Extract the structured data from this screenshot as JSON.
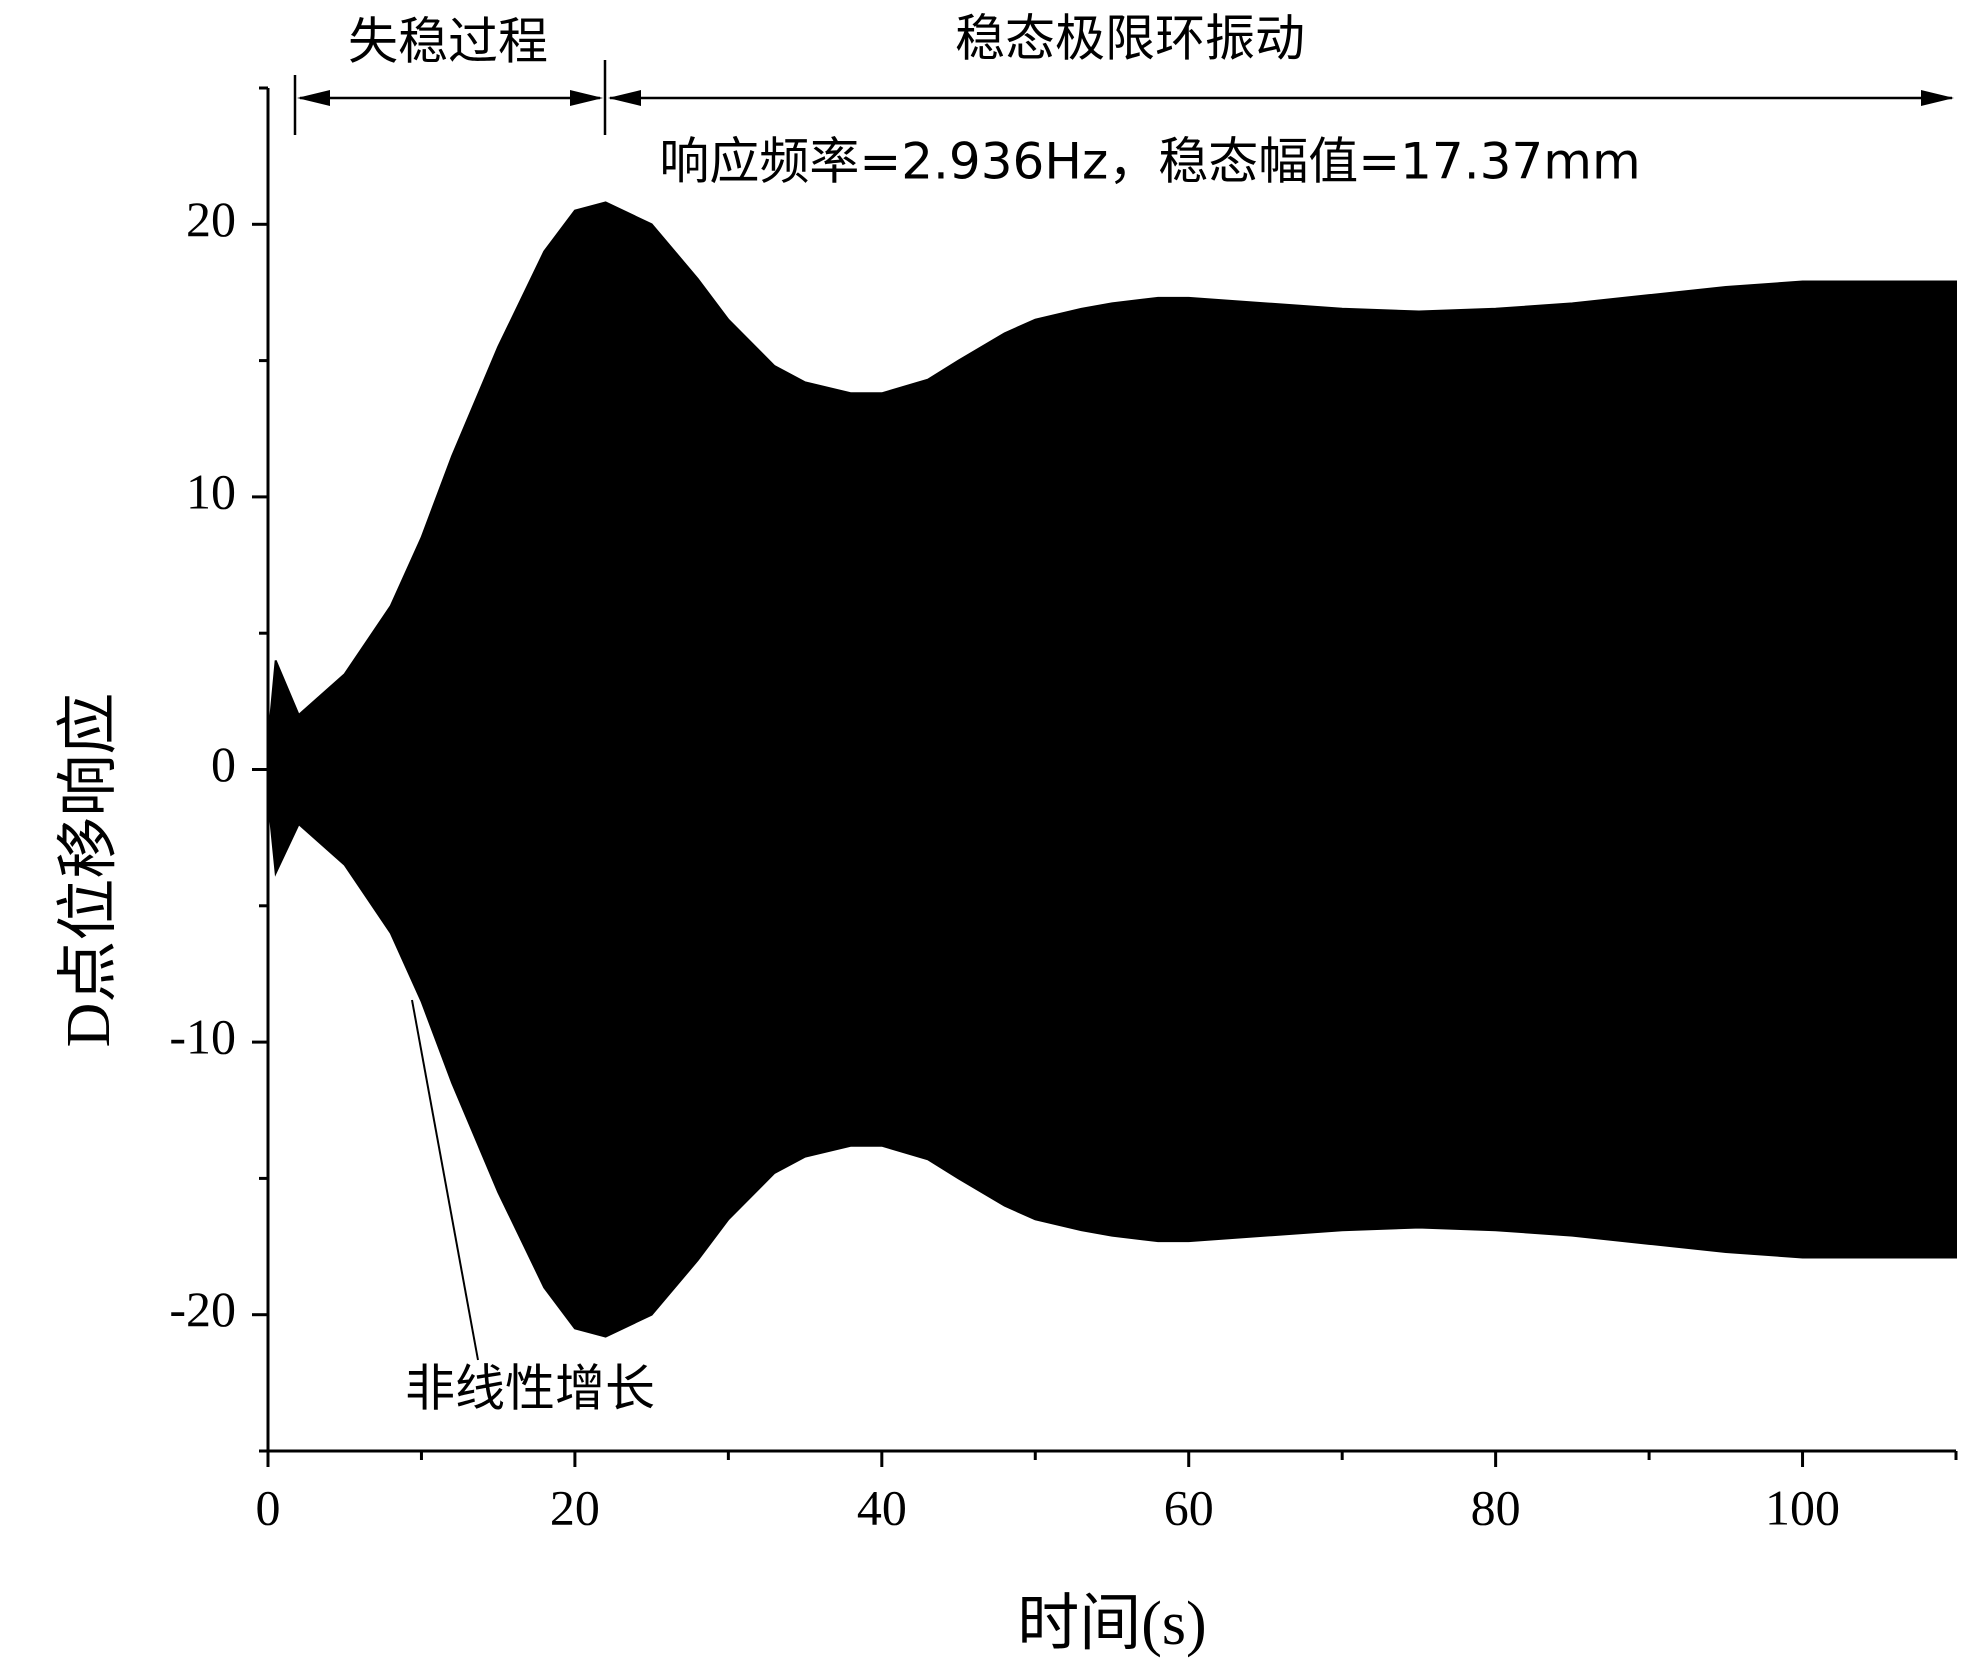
{
  "chart_data": {
    "type": "area",
    "annotations": [
      "失稳过程",
      "稳态极限环振动",
      "响应频率=2.936Hz，稳态幅值=17.37mm",
      "非线性增长"
    ],
    "xlabel": "时间(s)",
    "ylabel": "D点位移响应",
    "x": [
      0,
      0.5,
      2,
      5,
      8,
      10,
      12,
      15,
      18,
      20,
      22,
      25,
      28,
      30,
      33,
      35,
      38,
      40,
      43,
      45,
      48,
      50,
      53,
      55,
      58,
      60,
      65,
      70,
      75,
      80,
      85,
      90,
      95,
      100,
      105,
      110
    ],
    "series": [
      {
        "color": "#000000",
        "values": [
          1,
          4,
          2,
          3.5,
          6,
          8.5,
          11.5,
          15.5,
          19,
          20.5,
          20.8,
          20,
          18,
          16.5,
          14.8,
          14.2,
          13.8,
          13.8,
          14.3,
          15,
          16,
          16.5,
          16.9,
          17.1,
          17.3,
          17.3,
          17.1,
          16.9,
          16.8,
          16.9,
          17.1,
          17.4,
          17.7,
          17.9,
          17.9,
          17.9
        ]
      },
      {
        "color": "#000000",
        "values": [
          -1,
          -3.8,
          -2,
          -3.5,
          -6,
          -8.5,
          -11.5,
          -15.5,
          -19,
          -20.5,
          -20.8,
          -20,
          -18,
          -16.5,
          -14.8,
          -14.2,
          -13.8,
          -13.8,
          -14.3,
          -15,
          -16,
          -16.5,
          -16.9,
          -17.1,
          -17.3,
          -17.3,
          -17.1,
          -16.9,
          -16.8,
          -16.9,
          -17.1,
          -17.4,
          -17.7,
          -17.9,
          -17.9,
          -17.9
        ]
      }
    ],
    "xlim": [
      0,
      110
    ],
    "xticks": [
      0,
      20,
      40,
      60,
      80,
      100
    ],
    "xminorticks": [
      10,
      30,
      50,
      70,
      90,
      110
    ],
    "ylim": [
      -25,
      25
    ],
    "yticks": [
      -20,
      -10,
      0,
      10,
      20
    ],
    "yminorticks": [
      -25,
      -15,
      -5,
      5,
      15,
      25
    ]
  }
}
